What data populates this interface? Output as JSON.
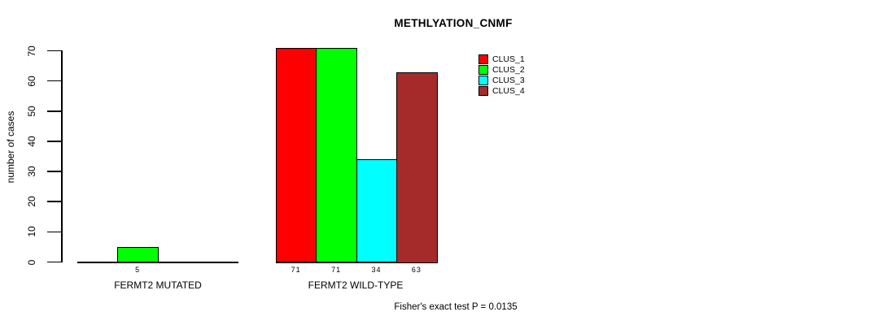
{
  "chart_data": {
    "type": "bar",
    "title": "METHLYATION_CNMF",
    "ylabel": "number of cases",
    "xlabel": "",
    "ylim": [
      0,
      70
    ],
    "yticks": [
      0,
      10,
      20,
      30,
      40,
      50,
      60,
      70
    ],
    "grid": false,
    "legend_position": "top-right-outside",
    "series": [
      {
        "name": "CLUS_1",
        "color": "#FF0000"
      },
      {
        "name": "CLUS_2",
        "color": "#00FF00"
      },
      {
        "name": "CLUS_3",
        "color": "#00FFFF"
      },
      {
        "name": "CLUS_4",
        "color": "#A52A2A"
      }
    ],
    "groups": [
      {
        "label": "FERMT2 MUTATED",
        "values": [
          0,
          5,
          0,
          0
        ],
        "bar_labels": [
          "",
          "5",
          "",
          ""
        ]
      },
      {
        "label": "FERMT2 WILD-TYPE",
        "values": [
          71,
          71,
          34,
          63
        ],
        "bar_labels": [
          "71",
          "71",
          "34",
          "63"
        ]
      }
    ],
    "annotation": "Fisher's exact test P = 0.0135"
  },
  "colors": {
    "background": "#ffffff",
    "axis": "#000000",
    "text": "#000000"
  }
}
